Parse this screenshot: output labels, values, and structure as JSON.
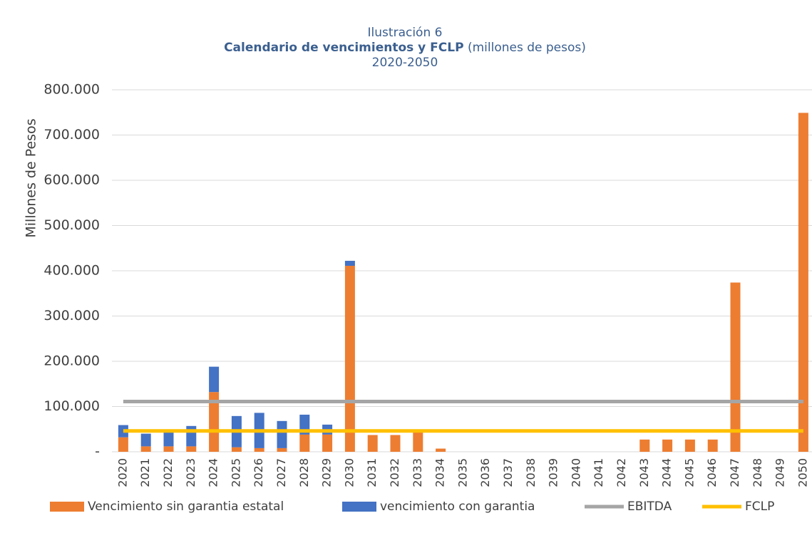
{
  "chart_data": {
    "type": "bar",
    "title": "Ilustración 6",
    "subtitle": [
      "Calendario de vencimientos y FCLP",
      "(millones de pesos)"
    ],
    "period": "2020-2050",
    "y_label": "Millones de Pesos",
    "categories": [
      "2020",
      "2021",
      "2022",
      "2023",
      "2024",
      "2025",
      "2026",
      "2027",
      "2028",
      "2029",
      "2030",
      "2031",
      "2032",
      "2033",
      "2034",
      "2035",
      "2036",
      "2037",
      "2038",
      "2039",
      "2040",
      "2041",
      "2042",
      "2043",
      "2044",
      "2045",
      "2046",
      "2047",
      "2048",
      "2049",
      "2050"
    ],
    "series": [
      {
        "name": "Vencimiento sin garantia estatal",
        "type": "bar",
        "color": "#ed7d31",
        "values": [
          32000,
          12000,
          12000,
          12000,
          132000,
          10000,
          8000,
          8000,
          38000,
          38000,
          411000,
          37000,
          37000,
          46000,
          7000,
          0,
          0,
          0,
          0,
          0,
          0,
          0,
          0,
          27000,
          27000,
          27000,
          27000,
          374000,
          0,
          0,
          749000
        ]
      },
      {
        "name": "vencimiento con garantia",
        "type": "bar",
        "color": "#4472c4",
        "values": [
          27000,
          28000,
          33000,
          45000,
          56000,
          69000,
          78000,
          60000,
          44000,
          22000,
          11000,
          0,
          0,
          0,
          0,
          0,
          0,
          0,
          0,
          0,
          0,
          0,
          0,
          0,
          0,
          0,
          0,
          0,
          0,
          0,
          0
        ]
      },
      {
        "name": "EBITDA",
        "type": "line",
        "color": "#a5a5a5",
        "values": [
          111000,
          111000,
          111000,
          111000,
          111000,
          111000,
          111000,
          111000,
          111000,
          111000,
          111000,
          111000,
          111000,
          111000,
          111000,
          111000,
          111000,
          111000,
          111000,
          111000,
          111000,
          111000,
          111000,
          111000,
          111000,
          111000,
          111000,
          111000,
          111000,
          111000,
          111000
        ]
      },
      {
        "name": "FCLP",
        "type": "line",
        "color": "#ffc000",
        "values": [
          46000,
          46000,
          46000,
          46000,
          46000,
          46000,
          46000,
          46000,
          46000,
          46000,
          46000,
          46000,
          46000,
          46000,
          46000,
          46000,
          46000,
          46000,
          46000,
          46000,
          46000,
          46000,
          46000,
          46000,
          46000,
          46000,
          46000,
          46000,
          46000,
          46000,
          46000
        ]
      }
    ],
    "ylim": [
      0,
      800000
    ],
    "yticks": [
      {
        "value": 0,
        "label": "-"
      },
      {
        "value": 100000,
        "label": "100.000"
      },
      {
        "value": 200000,
        "label": "200.000"
      },
      {
        "value": 300000,
        "label": "300.000"
      },
      {
        "value": 400000,
        "label": "400.000"
      },
      {
        "value": 500000,
        "label": "500.000"
      },
      {
        "value": 600000,
        "label": "600.000"
      },
      {
        "value": 700000,
        "label": "700.000"
      },
      {
        "value": 800000,
        "label": "800.000"
      }
    ],
    "grid": true,
    "legend": "bottom"
  }
}
